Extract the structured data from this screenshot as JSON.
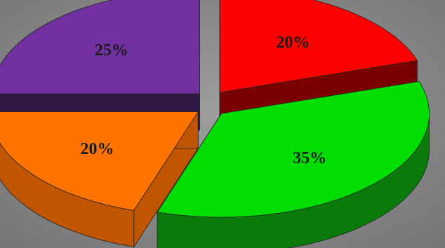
{
  "chart_data": {
    "type": "pie",
    "style": "3d-exploded",
    "labels_shown": "percent",
    "slices": [
      {
        "value": 20,
        "label": "20%",
        "color": "#ff0000",
        "side_color": "#7a0000"
      },
      {
        "value": 35,
        "label": "35%",
        "color": "#00dd00",
        "side_color": "#0a7a0a"
      },
      {
        "value": 20,
        "label": "20%",
        "color": "#ff7400",
        "side_color": "#c25500"
      },
      {
        "value": 25,
        "label": "25%",
        "color": "#7030a0",
        "side_color": "#2e1742"
      }
    ]
  }
}
